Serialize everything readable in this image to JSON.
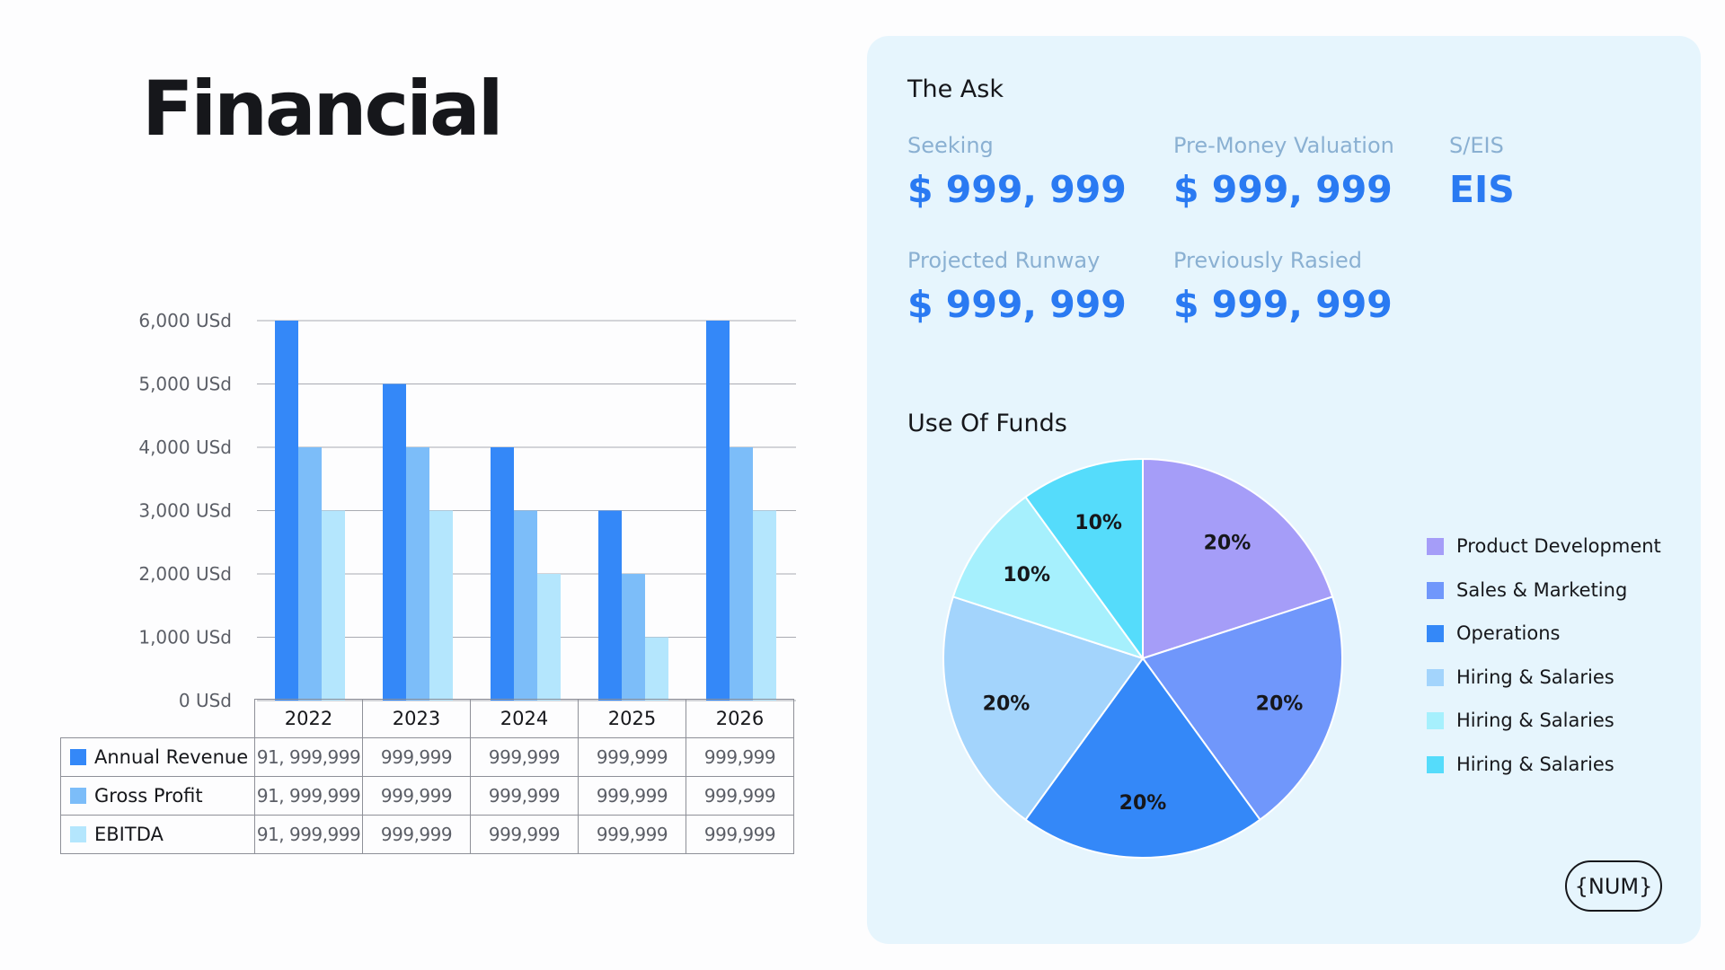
{
  "page": {
    "title": "Financial"
  },
  "chart_data": [
    {
      "type": "bar",
      "categories": [
        "2022",
        "2023",
        "2024",
        "2025",
        "2026"
      ],
      "series": [
        {
          "name": "Annual Revenue",
          "color": "#3488f8",
          "values": [
            6000,
            5000,
            4000,
            3000,
            6000
          ]
        },
        {
          "name": "Gross Profit",
          "color": "#7cbdf9",
          "values": [
            4000,
            4000,
            3000,
            2000,
            4000
          ]
        },
        {
          "name": "EBITDA",
          "color": "#b4e6fd",
          "values": [
            3000,
            3000,
            2000,
            1000,
            3000
          ]
        }
      ],
      "ylim": [
        0,
        6000
      ],
      "yticks": [
        "0 USd",
        "1,000 USd",
        "2,000 USd",
        "3,000 USd",
        "4,000 USd",
        "5,000 USd",
        "6,000 USd"
      ],
      "grid": true,
      "data_table": [
        [
          "91, 999,999",
          "999,999",
          "999,999",
          "999,999",
          "999,999"
        ],
        [
          "91, 999,999",
          "999,999",
          "999,999",
          "999,999",
          "999,999"
        ],
        [
          "91, 999,999",
          "999,999",
          "999,999",
          "999,999",
          "999,999"
        ]
      ]
    },
    {
      "type": "pie",
      "title": "Use Of Funds",
      "slices": [
        {
          "label": "Product Development",
          "value": 20,
          "display": "20%",
          "color": "#a59df8"
        },
        {
          "label": "Sales & Marketing",
          "value": 20,
          "display": "20%",
          "color": "#7097fb"
        },
        {
          "label": "Operations",
          "value": 20,
          "display": "20%",
          "color": "#3488f8"
        },
        {
          "label": "Hiring & Salaries",
          "value": 20,
          "display": "20%",
          "color": "#a3d4fc"
        },
        {
          "label": "Hiring & Salaries",
          "value": 10,
          "display": "10%",
          "color": "#a6f0fd"
        },
        {
          "label": "Hiring & Salaries",
          "value": 10,
          "display": "10%",
          "color": "#55dcfb"
        }
      ],
      "legend": "right"
    }
  ],
  "ask": {
    "title": "The Ask",
    "seeking_label": "Seeking",
    "seeking_value": "$ 999, 999",
    "valuation_label": "Pre-Money Valuation",
    "valuation_value": "$ 999, 999",
    "seis_label": "S/EIS",
    "seis_value": "EIS",
    "runway_label": "Projected Runway",
    "runway_value": "$ 999, 999",
    "raised_label": "Previously Rasied",
    "raised_value": "$ 999, 999"
  },
  "badge": {
    "label": "{NUM}"
  }
}
